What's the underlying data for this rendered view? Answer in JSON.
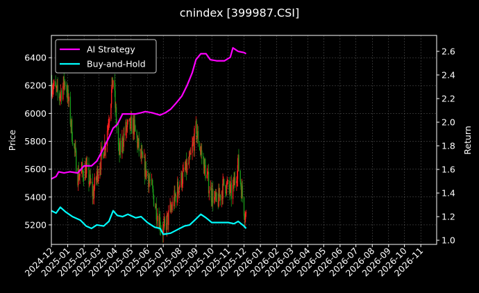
{
  "chart_data": {
    "type": "line",
    "title": "cnindex [399987.CSI]",
    "xlabel": "",
    "ylabel_left": "Price",
    "ylabel_right": "Return",
    "grid": true,
    "legend_position": "top-left",
    "x_ticks": [
      "2024-12",
      "2025-01",
      "2025-02",
      "2025-03",
      "2025-04",
      "2025-05",
      "2025-06",
      "2025-07",
      "2025-08",
      "2025-09",
      "2025-10",
      "2025-11",
      "2025-12",
      "2026-01",
      "2026-02",
      "2026-03",
      "2026-04",
      "2026-05",
      "2026-06",
      "2026-07",
      "2026-08",
      "2026-09",
      "2026-10",
      "2026-11"
    ],
    "x_range": [
      "2024-12-01",
      "2026-12-01"
    ],
    "y_left": {
      "range": [
        5060,
        6560
      ],
      "ticks": [
        5200,
        5400,
        5600,
        5800,
        6000,
        6200,
        6400
      ]
    },
    "y_right": {
      "range": [
        0.965,
        2.735
      ],
      "ticks": [
        "1.0",
        "1.2",
        "1.4",
        "1.6",
        "1.8",
        "2.0",
        "2.2",
        "2.4",
        "2.6"
      ]
    },
    "candles": {
      "up_color": "#ff2020",
      "down_color": "#1a9a1a",
      "close_anchors": [
        [
          "2024-12-01",
          6220
        ],
        [
          "2024-12-15",
          6120
        ],
        [
          "2024-12-28",
          6240
        ],
        [
          "2025-01-08",
          5900
        ],
        [
          "2025-01-20",
          5560
        ],
        [
          "2025-02-05",
          5600
        ],
        [
          "2025-02-18",
          5420
        ],
        [
          "2025-03-01",
          5620
        ],
        [
          "2025-03-15",
          5820
        ],
        [
          "2025-03-28",
          6250
        ],
        [
          "2025-04-08",
          5700
        ],
        [
          "2025-04-20",
          5880
        ],
        [
          "2025-05-05",
          5920
        ],
        [
          "2025-05-20",
          5680
        ],
        [
          "2025-06-05",
          5520
        ],
        [
          "2025-06-20",
          5280
        ],
        [
          "2025-07-01",
          5150
        ],
        [
          "2025-07-15",
          5300
        ],
        [
          "2025-08-01",
          5500
        ],
        [
          "2025-08-20",
          5650
        ],
        [
          "2025-09-01",
          5880
        ],
        [
          "2025-09-15",
          5650
        ],
        [
          "2025-09-28",
          5450
        ],
        [
          "2025-10-10",
          5350
        ],
        [
          "2025-10-25",
          5500
        ],
        [
          "2025-11-08",
          5420
        ],
        [
          "2025-11-20",
          5640
        ],
        [
          "2025-12-01",
          5320
        ],
        [
          "2025-12-05",
          5260
        ]
      ]
    },
    "series": [
      {
        "name": "AI Strategy",
        "axis": "right",
        "color": "#ff00ff",
        "points": [
          [
            "2024-12-01",
            1.52
          ],
          [
            "2024-12-10",
            1.54
          ],
          [
            "2024-12-15",
            1.58
          ],
          [
            "2024-12-25",
            1.57
          ],
          [
            "2025-01-05",
            1.58
          ],
          [
            "2025-01-20",
            1.57
          ],
          [
            "2025-02-01",
            1.63
          ],
          [
            "2025-02-15",
            1.63
          ],
          [
            "2025-02-25",
            1.67
          ],
          [
            "2025-03-10",
            1.78
          ],
          [
            "2025-03-20",
            1.87
          ],
          [
            "2025-03-28",
            1.95
          ],
          [
            "2025-04-05",
            1.98
          ],
          [
            "2025-04-15",
            2.07
          ],
          [
            "2025-04-25",
            2.07
          ],
          [
            "2025-05-10",
            2.07
          ],
          [
            "2025-05-20",
            2.08
          ],
          [
            "2025-05-28",
            2.09
          ],
          [
            "2025-06-10",
            2.08
          ],
          [
            "2025-06-25",
            2.06
          ],
          [
            "2025-07-05",
            2.08
          ],
          [
            "2025-07-15",
            2.11
          ],
          [
            "2025-07-25",
            2.16
          ],
          [
            "2025-08-05",
            2.22
          ],
          [
            "2025-08-15",
            2.31
          ],
          [
            "2025-08-25",
            2.42
          ],
          [
            "2025-09-01",
            2.53
          ],
          [
            "2025-09-10",
            2.58
          ],
          [
            "2025-09-20",
            2.58
          ],
          [
            "2025-09-28",
            2.53
          ],
          [
            "2025-10-10",
            2.52
          ],
          [
            "2025-10-25",
            2.52
          ],
          [
            "2025-11-05",
            2.55
          ],
          [
            "2025-11-10",
            2.63
          ],
          [
            "2025-11-20",
            2.6
          ],
          [
            "2025-12-01",
            2.59
          ],
          [
            "2025-12-05",
            2.58
          ]
        ]
      },
      {
        "name": "Buy-and-Hold",
        "axis": "right",
        "color": "#00ffff",
        "points": [
          [
            "2024-12-01",
            1.25
          ],
          [
            "2024-12-10",
            1.23
          ],
          [
            "2024-12-18",
            1.28
          ],
          [
            "2024-12-28",
            1.24
          ],
          [
            "2025-01-10",
            1.2
          ],
          [
            "2025-01-25",
            1.17
          ],
          [
            "2025-02-05",
            1.12
          ],
          [
            "2025-02-15",
            1.1
          ],
          [
            "2025-02-25",
            1.13
          ],
          [
            "2025-03-10",
            1.12
          ],
          [
            "2025-03-20",
            1.16
          ],
          [
            "2025-03-28",
            1.25
          ],
          [
            "2025-04-05",
            1.21
          ],
          [
            "2025-04-15",
            1.2
          ],
          [
            "2025-04-25",
            1.22
          ],
          [
            "2025-05-10",
            1.19
          ],
          [
            "2025-05-20",
            1.2
          ],
          [
            "2025-06-01",
            1.15
          ],
          [
            "2025-06-15",
            1.11
          ],
          [
            "2025-06-25",
            1.1
          ],
          [
            "2025-07-01",
            1.05
          ],
          [
            "2025-07-15",
            1.06
          ],
          [
            "2025-07-28",
            1.09
          ],
          [
            "2025-08-10",
            1.12
          ],
          [
            "2025-08-20",
            1.13
          ],
          [
            "2025-09-01",
            1.18
          ],
          [
            "2025-09-10",
            1.22
          ],
          [
            "2025-09-20",
            1.19
          ],
          [
            "2025-10-01",
            1.15
          ],
          [
            "2025-10-15",
            1.15
          ],
          [
            "2025-11-01",
            1.15
          ],
          [
            "2025-11-12",
            1.14
          ],
          [
            "2025-11-20",
            1.16
          ],
          [
            "2025-12-01",
            1.12
          ],
          [
            "2025-12-05",
            1.1
          ]
        ]
      }
    ]
  }
}
